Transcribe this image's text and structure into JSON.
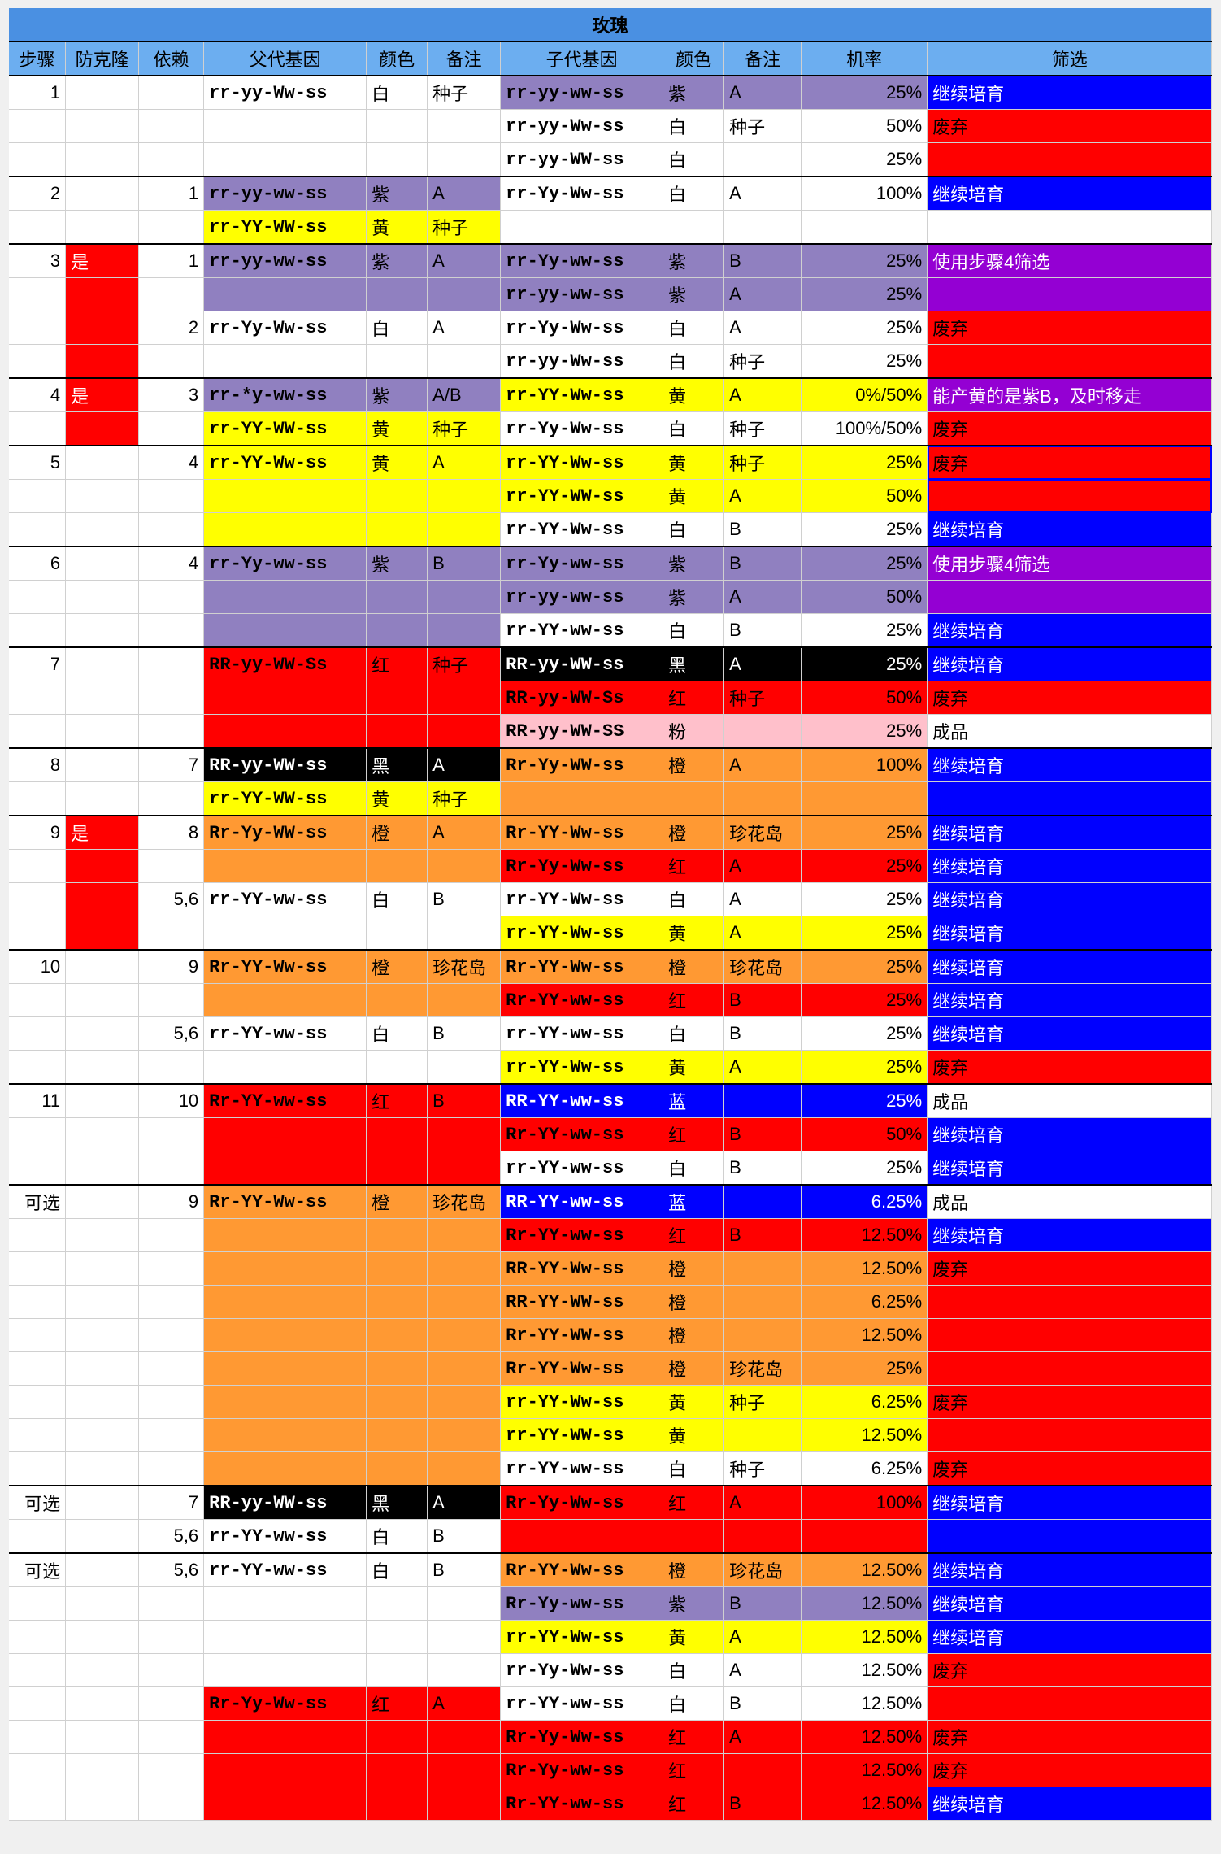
{
  "colors": {
    "titleBg": "#4a90e2",
    "headerBg": "#6caef0",
    "white": "#ffffff",
    "black": "#000000",
    "red": "#ff0000",
    "darkred": "#d62a1a",
    "yellow": "#ffff00",
    "purple": "#9080c0",
    "brightpurple": "#9400d3",
    "blue": "#0000ff",
    "orange": "#ff9933",
    "pink": "#ffc0cb",
    "none": ""
  },
  "title": "玫瑰",
  "headers": [
    "步骤",
    "防克隆",
    "依赖",
    "父代基因",
    "颜色",
    "备注",
    "子代基因",
    "颜色",
    "备注",
    "机率",
    "筛选"
  ],
  "rows": [
    {
      "sep": 1,
      "step": "1",
      "clone": "",
      "dep": "",
      "pg": "rr-yy-Ww-ss",
      "pc": "白",
      "pn": "种子",
      "pbg": "white",
      "cg": "rr-yy-ww-ss",
      "cc": "紫",
      "cn": "A",
      "pr": "25%",
      "cbg": "purple",
      "fl": "继续培育",
      "fbg": "blue",
      "ftc": "white"
    },
    {
      "cg": "rr-yy-Ww-ss",
      "cc": "白",
      "cn": "种子",
      "pr": "50%",
      "cbg": "white",
      "fl": "废弃",
      "fbg": "red",
      "ftc": "black"
    },
    {
      "cg": "rr-yy-WW-ss",
      "cc": "白",
      "cn": "",
      "pr": "25%",
      "cbg": "white",
      "fl": "",
      "fbg": "red",
      "ftc": "white"
    },
    {
      "sep": 1,
      "step": "2",
      "clone": "",
      "dep": "1",
      "pg": "rr-yy-ww-ss",
      "pc": "紫",
      "pn": "A",
      "pbg": "purple",
      "cg": "rr-Yy-Ww-ss",
      "cc": "白",
      "cn": "A",
      "pr": "100%",
      "cbg": "white",
      "fl": "继续培育",
      "fbg": "blue",
      "ftc": "white"
    },
    {
      "dep": "",
      "pg": "rr-YY-WW-ss",
      "pc": "黄",
      "pn": "种子",
      "pbg": "yellow",
      "cg": "",
      "cc": "",
      "cn": "",
      "pr": "",
      "cbg": "none",
      "fl": "",
      "fbg": "none",
      "ftc": "black"
    },
    {
      "sep": 1,
      "step": "3",
      "clone": "是",
      "clbg": "red",
      "dep": "1",
      "pg": "rr-yy-ww-ss",
      "pc": "紫",
      "pn": "A",
      "pbg": "purple",
      "cg": "rr-Yy-ww-ss",
      "cc": "紫",
      "cn": "B",
      "pr": "25%",
      "cbg": "purple",
      "fl": "使用步骤4筛选",
      "fbg": "brightpurple",
      "ftc": "white"
    },
    {
      "clbg": "red",
      "pbg": "purple",
      "cg": "rr-yy-ww-ss",
      "cc": "紫",
      "cn": "A",
      "pr": "25%",
      "cbg": "purple",
      "fl": "",
      "fbg": "brightpurple",
      "ftc": "white"
    },
    {
      "clbg": "red",
      "dep": "2",
      "pg": "rr-Yy-Ww-ss",
      "pc": "白",
      "pn": "A",
      "pbg": "white",
      "cg": "rr-Yy-Ww-ss",
      "cc": "白",
      "cn": "A",
      "pr": "25%",
      "cbg": "white",
      "fl": "废弃",
      "fbg": "red",
      "ftc": "black"
    },
    {
      "clbg": "red",
      "pbg": "white",
      "cg": "rr-yy-Ww-ss",
      "cc": "白",
      "cn": "种子",
      "pr": "25%",
      "cbg": "white",
      "fl": "",
      "fbg": "red",
      "ftc": "black"
    },
    {
      "sep": 1,
      "step": "4",
      "clone": "是",
      "clbg": "red",
      "dep": "3",
      "pg": "rr-*y-ww-ss",
      "pc": "紫",
      "pn": "A/B",
      "pbg": "purple",
      "cg": "rr-YY-Ww-ss",
      "cc": "黄",
      "cn": "A",
      "pr": "0%/50%",
      "cbg": "yellow",
      "fl": "能产黄的是紫B，及时移走",
      "fbg": "brightpurple",
      "ftc": "white"
    },
    {
      "clbg": "red",
      "dep": "",
      "pg": "rr-YY-WW-ss",
      "pc": "黄",
      "pn": "种子",
      "pbg": "yellow",
      "cg": "rr-Yy-Ww-ss",
      "cc": "白",
      "cn": "种子",
      "pr": "100%/50%",
      "cbg": "white",
      "fl": "废弃",
      "fbg": "red",
      "ftc": "black"
    },
    {
      "sep": 1,
      "step": "5",
      "clone": "",
      "dep": "4",
      "pg": "rr-YY-Ww-ss",
      "pc": "黄",
      "pn": "A",
      "pbg": "yellow",
      "cg": "rr-YY-Ww-ss",
      "cc": "黄",
      "cn": "种子",
      "pr": "25%",
      "cbg": "yellow",
      "fl": "废弃",
      "fbg": "red",
      "ftc": "black",
      "fborder": "blue"
    },
    {
      "pbg": "yellow",
      "cg": "rr-YY-WW-ss",
      "cc": "黄",
      "cn": "A",
      "pr": "50%",
      "cbg": "yellow",
      "fl": "",
      "fbg": "red",
      "ftc": "black",
      "fborder": "blue"
    },
    {
      "pbg": "yellow",
      "cg": "rr-YY-Ww-ss",
      "cc": "白",
      "cn": "B",
      "pr": "25%",
      "cbg": "white",
      "fl": "继续培育",
      "fbg": "blue",
      "ftc": "white"
    },
    {
      "sep": 1,
      "step": "6",
      "clone": "",
      "dep": "4",
      "pg": "rr-Yy-ww-ss",
      "pc": "紫",
      "pn": "B",
      "pbg": "purple",
      "cg": "rr-Yy-ww-ss",
      "cc": "紫",
      "cn": "B",
      "pr": "25%",
      "cbg": "purple",
      "fl": "使用步骤4筛选",
      "fbg": "brightpurple",
      "ftc": "white"
    },
    {
      "pbg": "purple",
      "cg": "rr-yy-ww-ss",
      "cc": "紫",
      "cn": "A",
      "pr": "50%",
      "cbg": "purple",
      "fl": "",
      "fbg": "brightpurple",
      "ftc": "white"
    },
    {
      "pbg": "purple",
      "cg": "rr-YY-ww-ss",
      "cc": "白",
      "cn": "B",
      "pr": "25%",
      "cbg": "white",
      "fl": "继续培育",
      "fbg": "blue",
      "ftc": "white"
    },
    {
      "sep": 1,
      "step": "7",
      "clone": "",
      "dep": "",
      "pg": "RR-yy-WW-Ss",
      "pc": "红",
      "pn": "种子",
      "pbg": "red",
      "cg": "RR-yy-WW-ss",
      "cc": "黑",
      "cn": "A",
      "pr": "25%",
      "cbg": "black",
      "ctc": "white",
      "fl": "继续培育",
      "fbg": "blue",
      "ftc": "white"
    },
    {
      "pbg": "red",
      "cg": "RR-yy-WW-Ss",
      "cc": "红",
      "cn": "种子",
      "pr": "50%",
      "cbg": "red",
      "fl": "废弃",
      "fbg": "red",
      "ftc": "black"
    },
    {
      "pbg": "red",
      "cg": "RR-yy-WW-SS",
      "cc": "粉",
      "cn": "",
      "pr": "25%",
      "cbg": "pink",
      "fl": "成品",
      "fbg": "white",
      "ftc": "black"
    },
    {
      "sep": 1,
      "step": "8",
      "clone": "",
      "dep": "7",
      "pg": "RR-yy-WW-ss",
      "pc": "黑",
      "pn": "A",
      "pbg": "black",
      "ptc": "white",
      "cg": "Rr-Yy-WW-ss",
      "cc": "橙",
      "cn": "A",
      "pr": "100%",
      "cbg": "orange",
      "fl": "继续培育",
      "fbg": "blue",
      "ftc": "white"
    },
    {
      "dep": "",
      "pg": "rr-YY-WW-ss",
      "pc": "黄",
      "pn": "种子",
      "pbg": "yellow",
      "cg": "",
      "cc": "",
      "cn": "",
      "pr": "",
      "cbg": "orange",
      "fl": "",
      "fbg": "blue",
      "ftc": "white"
    },
    {
      "sep": 1,
      "step": "9",
      "clone": "是",
      "clbg": "red",
      "dep": "8",
      "pg": "Rr-Yy-WW-ss",
      "pc": "橙",
      "pn": "A",
      "pbg": "orange",
      "cg": "Rr-YY-Ww-ss",
      "cc": "橙",
      "cn": "珍花岛",
      "pr": "25%",
      "cbg": "orange",
      "fl": "继续培育",
      "fbg": "blue",
      "ftc": "white"
    },
    {
      "clbg": "red",
      "pbg": "orange",
      "cg": "Rr-Yy-Ww-ss",
      "cc": "红",
      "cn": "A",
      "pr": "25%",
      "cbg": "red",
      "fl": "继续培育",
      "fbg": "blue",
      "ftc": "white"
    },
    {
      "clbg": "red",
      "dep": "5,6",
      "pg": "rr-YY-ww-ss",
      "pc": "白",
      "pn": "B",
      "pbg": "white",
      "cg": "rr-YY-Ww-ss",
      "cc": "白",
      "cn": "A",
      "pr": "25%",
      "cbg": "white",
      "fl": "继续培育",
      "fbg": "blue",
      "ftc": "white"
    },
    {
      "clbg": "red",
      "pbg": "white",
      "cg": "rr-YY-Ww-ss",
      "cc": "黄",
      "cn": "A",
      "pr": "25%",
      "cbg": "yellow",
      "fl": "继续培育",
      "fbg": "blue",
      "ftc": "white"
    },
    {
      "sep": 1,
      "step": "10",
      "clone": "",
      "dep": "9",
      "pg": "Rr-YY-Ww-ss",
      "pc": "橙",
      "pn": "珍花岛",
      "pbg": "orange",
      "cg": "Rr-YY-Ww-ss",
      "cc": "橙",
      "cn": "珍花岛",
      "pr": "25%",
      "cbg": "orange",
      "fl": "继续培育",
      "fbg": "blue",
      "ftc": "white"
    },
    {
      "pbg": "orange",
      "cg": "Rr-YY-ww-ss",
      "cc": "红",
      "cn": "B",
      "pr": "25%",
      "cbg": "red",
      "fl": "继续培育",
      "fbg": "blue",
      "ftc": "white"
    },
    {
      "dep": "5,6",
      "pg": "rr-YY-ww-ss",
      "pc": "白",
      "pn": "B",
      "pbg": "white",
      "cg": "rr-YY-ww-ss",
      "cc": "白",
      "cn": "B",
      "pr": "25%",
      "cbg": "white",
      "fl": "继续培育",
      "fbg": "blue",
      "ftc": "white"
    },
    {
      "pbg": "white",
      "cg": "rr-YY-Ww-ss",
      "cc": "黄",
      "cn": "A",
      "pr": "25%",
      "cbg": "yellow",
      "fl": "废弃",
      "fbg": "red",
      "ftc": "black"
    },
    {
      "sep": 1,
      "step": "11",
      "clone": "",
      "dep": "10",
      "pg": "Rr-YY-ww-ss",
      "pc": "红",
      "pn": "B",
      "pbg": "red",
      "cg": "RR-YY-ww-ss",
      "cc": "蓝",
      "cn": "",
      "pr": "25%",
      "cbg": "blue",
      "ctc": "white",
      "fl": "成品",
      "fbg": "white",
      "ftc": "black"
    },
    {
      "pbg": "red",
      "cg": "Rr-YY-ww-ss",
      "cc": "红",
      "cn": "B",
      "pr": "50%",
      "cbg": "red",
      "fl": "继续培育",
      "fbg": "blue",
      "ftc": "white"
    },
    {
      "pbg": "red",
      "cg": "rr-YY-ww-ss",
      "cc": "白",
      "cn": "B",
      "pr": "25%",
      "cbg": "white",
      "fl": "继续培育",
      "fbg": "blue",
      "ftc": "white"
    },
    {
      "sep": 1,
      "step": "可选",
      "clone": "",
      "dep": "9",
      "pg": "Rr-YY-Ww-ss",
      "pc": "橙",
      "pn": "珍花岛",
      "pbg": "orange",
      "cg": "RR-YY-ww-ss",
      "cc": "蓝",
      "cn": "",
      "pr": "6.25%",
      "cbg": "blue",
      "ctc": "white",
      "fl": "成品",
      "fbg": "white",
      "ftc": "black"
    },
    {
      "pbg": "orange",
      "cg": "Rr-YY-ww-ss",
      "cc": "红",
      "cn": "B",
      "pr": "12.50%",
      "cbg": "red",
      "fl": "继续培育",
      "fbg": "blue",
      "ftc": "white"
    },
    {
      "pbg": "orange",
      "cg": "RR-YY-Ww-ss",
      "cc": "橙",
      "cn": "",
      "pr": "12.50%",
      "cbg": "orange",
      "fl": "废弃",
      "fbg": "red",
      "ftc": "black"
    },
    {
      "pbg": "orange",
      "cg": "RR-YY-WW-ss",
      "cc": "橙",
      "cn": "",
      "pr": "6.25%",
      "cbg": "orange",
      "fl": "",
      "fbg": "red",
      "ftc": "black"
    },
    {
      "pbg": "orange",
      "cg": "Rr-YY-WW-ss",
      "cc": "橙",
      "cn": "",
      "pr": "12.50%",
      "cbg": "orange",
      "fl": "",
      "fbg": "red",
      "ftc": "black"
    },
    {
      "pbg": "orange",
      "cg": "Rr-YY-Ww-ss",
      "cc": "橙",
      "cn": "珍花岛",
      "pr": "25%",
      "cbg": "orange",
      "fl": "",
      "fbg": "red",
      "ftc": "black"
    },
    {
      "pbg": "orange",
      "cg": "rr-YY-Ww-ss",
      "cc": "黄",
      "cn": "种子",
      "pr": "6.25%",
      "cbg": "yellow",
      "fl": "废弃",
      "fbg": "red",
      "ftc": "black"
    },
    {
      "pbg": "orange",
      "cg": "rr-YY-WW-ss",
      "cc": "黄",
      "cn": "",
      "pr": "12.50%",
      "cbg": "yellow",
      "fl": "",
      "fbg": "red",
      "ftc": "black"
    },
    {
      "pbg": "orange",
      "cg": "rr-YY-ww-ss",
      "cc": "白",
      "cn": "种子",
      "pr": "6.25%",
      "cbg": "white",
      "fl": "废弃",
      "fbg": "red",
      "ftc": "black"
    },
    {
      "sep": 1,
      "step": "可选",
      "clone": "",
      "dep": "7",
      "pg": "RR-yy-WW-ss",
      "pc": "黑",
      "pn": "A",
      "pbg": "black",
      "ptc": "white",
      "cg": "Rr-Yy-Ww-ss",
      "cc": "红",
      "cn": "A",
      "pr": "100%",
      "cbg": "red",
      "fl": "继续培育",
      "fbg": "blue",
      "ftc": "white"
    },
    {
      "dep": "5,6",
      "pg": "rr-YY-ww-ss",
      "pc": "白",
      "pn": "B",
      "pbg": "white",
      "cg": "",
      "cc": "",
      "cn": "",
      "pr": "",
      "cbg": "red",
      "fl": "",
      "fbg": "blue",
      "ftc": "white"
    },
    {
      "sep": 1,
      "step": "可选",
      "clone": "",
      "dep": "5,6",
      "pg": "rr-YY-ww-ss",
      "pc": "白",
      "pn": "B",
      "pbg": "white",
      "cg": "Rr-YY-Ww-ss",
      "cc": "橙",
      "cn": "珍花岛",
      "pr": "12.50%",
      "cbg": "orange",
      "fl": "继续培育",
      "fbg": "blue",
      "ftc": "white"
    },
    {
      "pbg": "white",
      "cg": "Rr-Yy-ww-ss",
      "cc": "紫",
      "cn": "B",
      "pr": "12.50%",
      "cbg": "purple",
      "fl": "继续培育",
      "fbg": "blue",
      "ftc": "white"
    },
    {
      "pbg": "white",
      "cg": "rr-YY-Ww-ss",
      "cc": "黄",
      "cn": "A",
      "pr": "12.50%",
      "cbg": "yellow",
      "fl": "继续培育",
      "fbg": "blue",
      "ftc": "white"
    },
    {
      "pbg": "white",
      "cg": "rr-Yy-Ww-ss",
      "cc": "白",
      "cn": "A",
      "pr": "12.50%",
      "cbg": "white",
      "fl": "废弃",
      "fbg": "red",
      "ftc": "black"
    },
    {
      "pg": "Rr-Yy-Ww-ss",
      "pc": "红",
      "pn": "A",
      "pbg": "red",
      "cg": "rr-YY-ww-ss",
      "cc": "白",
      "cn": "B",
      "pr": "12.50%",
      "cbg": "white",
      "fl": "",
      "fbg": "red",
      "ftc": "black"
    },
    {
      "pbg": "red",
      "cg": "Rr-Yy-Ww-ss",
      "cc": "红",
      "cn": "A",
      "pr": "12.50%",
      "cbg": "red",
      "fl": "废弃",
      "fbg": "red",
      "ftc": "black"
    },
    {
      "pbg": "red",
      "cg": "Rr-Yy-ww-ss",
      "cc": "红",
      "cn": "",
      "pr": "12.50%",
      "cbg": "red",
      "fl": "废弃",
      "fbg": "red",
      "ftc": "black"
    },
    {
      "pbg": "red",
      "cg": "Rr-YY-ww-ss",
      "cc": "红",
      "cn": "B",
      "pr": "12.50%",
      "cbg": "red",
      "fl": "继续培育",
      "fbg": "blue",
      "ftc": "white"
    }
  ]
}
